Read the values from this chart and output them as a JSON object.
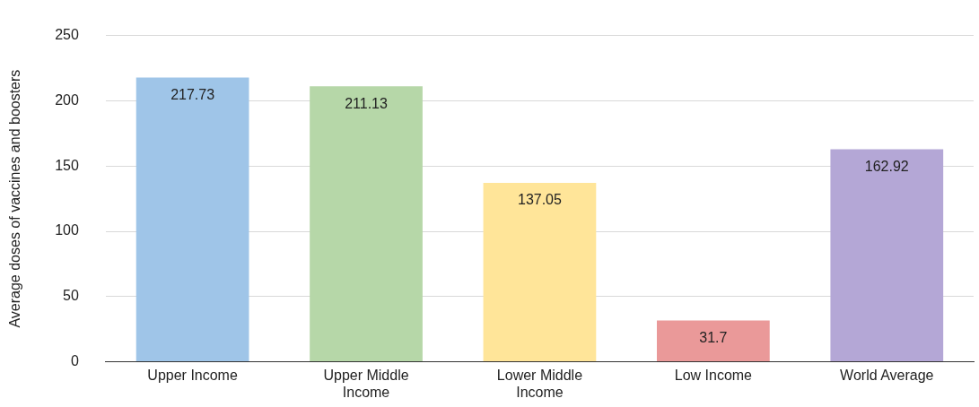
{
  "chart_data": {
    "type": "bar",
    "ylabel": "Average doses of vaccines and boosters",
    "categories": [
      "Upper Income",
      "Upper Middle Income",
      "Lower Middle Income",
      "Low Income",
      "World Average"
    ],
    "values": [
      217.73,
      211.13,
      137.05,
      31.7,
      162.92
    ],
    "colors": [
      "#9fc5e8",
      "#b6d7a8",
      "#ffe599",
      "#ea9999",
      "#b4a7d6"
    ],
    "ylim": [
      0,
      250
    ],
    "yticks": [
      0,
      50,
      100,
      150,
      200,
      250
    ],
    "grid": "y",
    "data_labels": true,
    "legend": false
  }
}
